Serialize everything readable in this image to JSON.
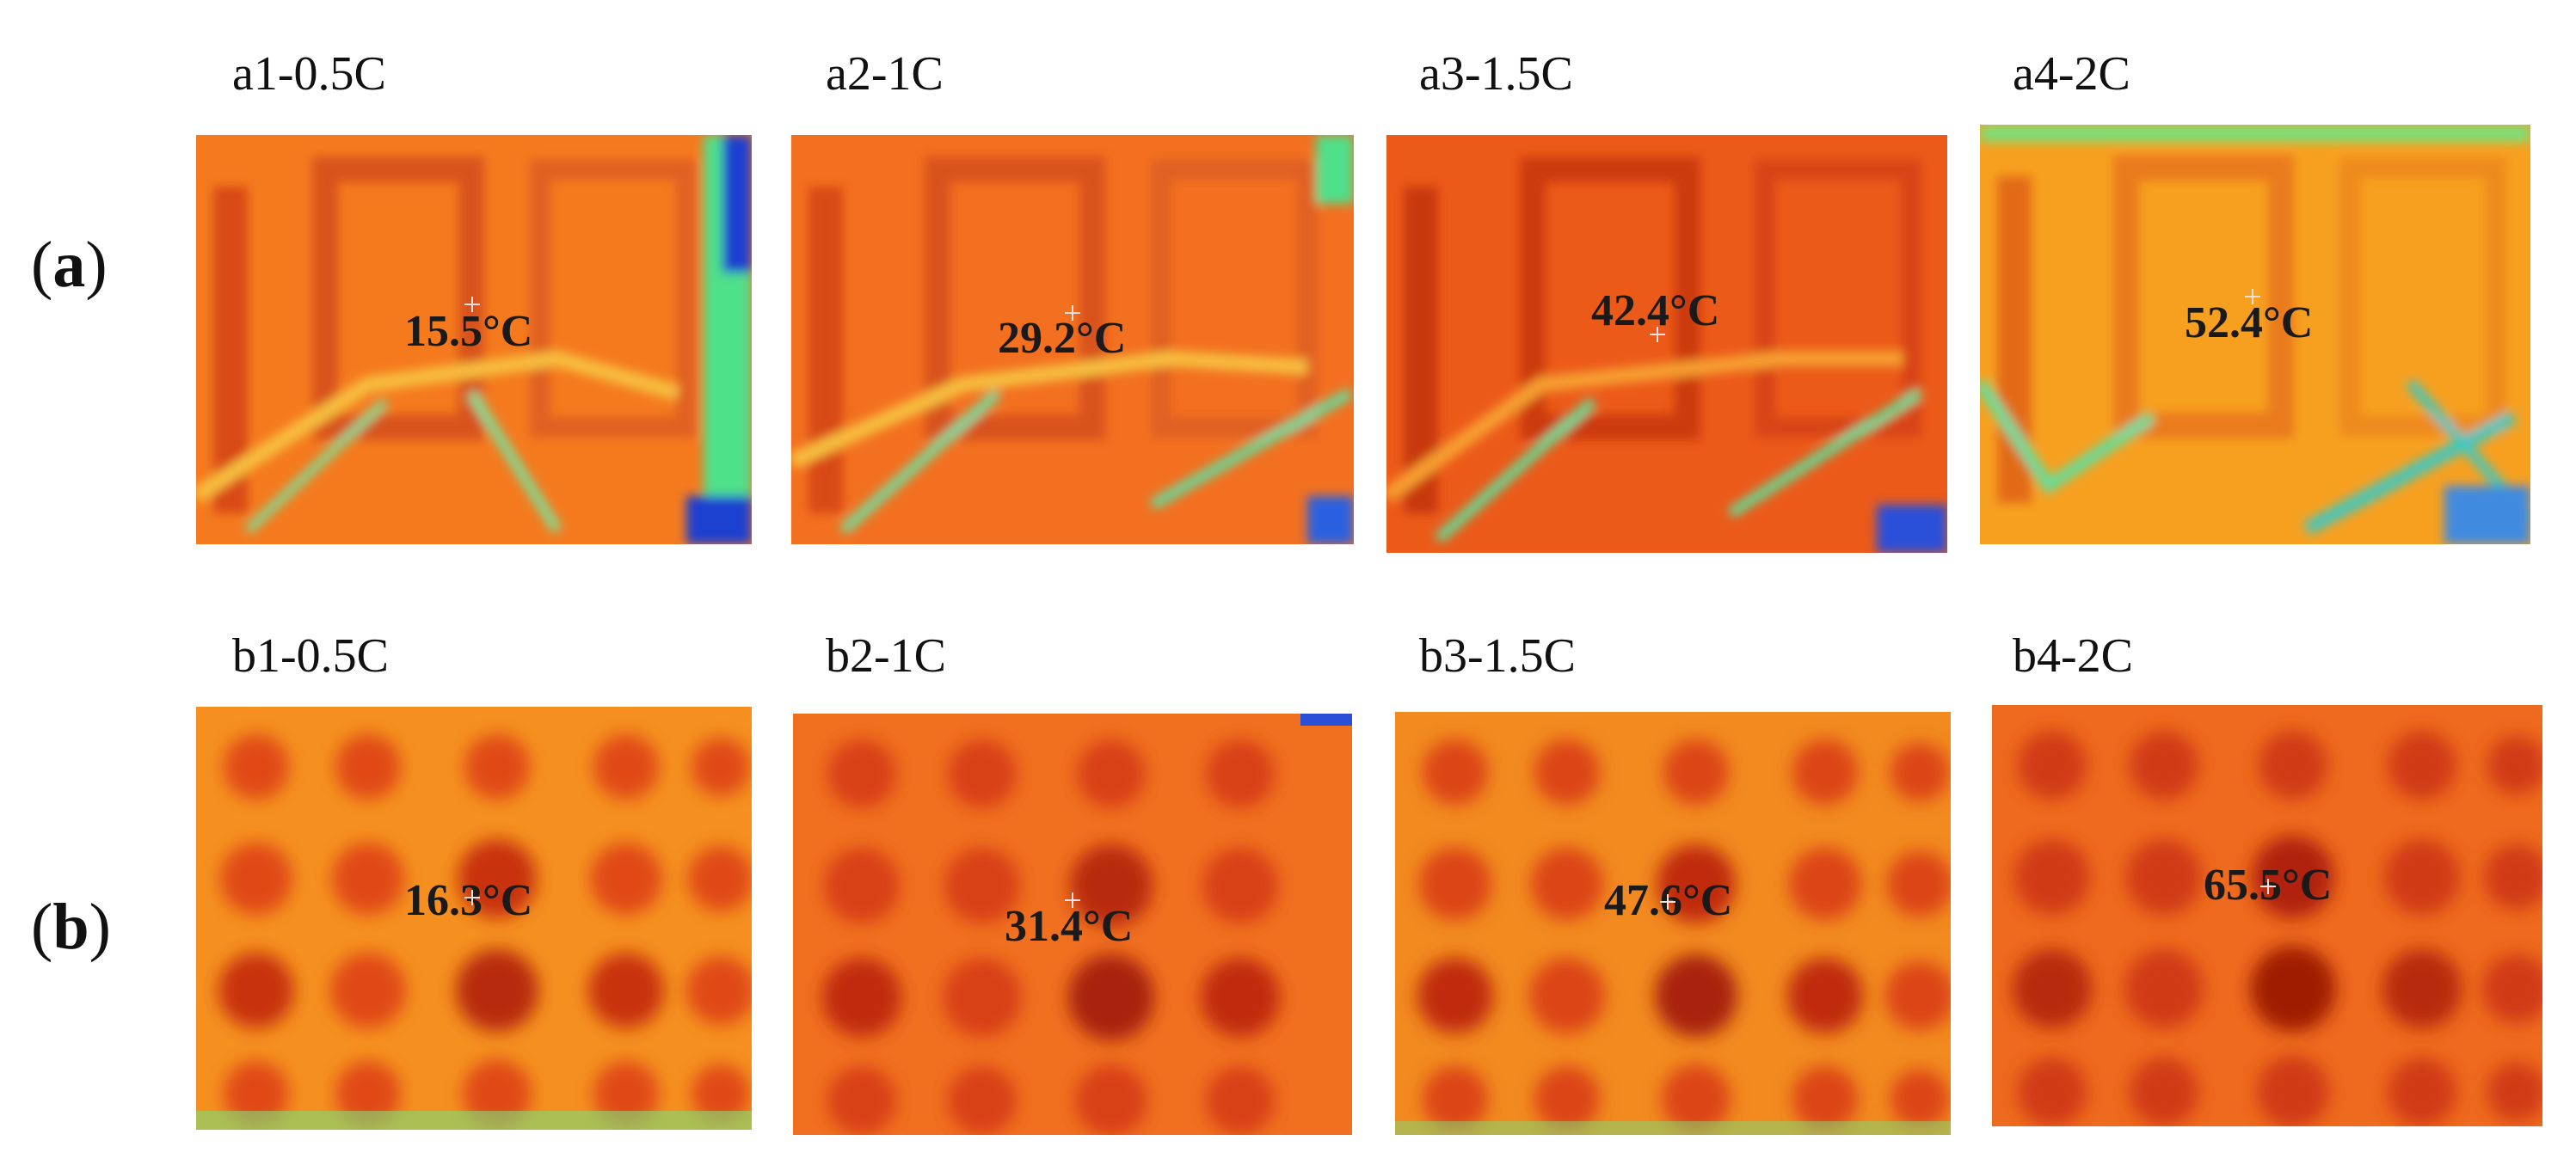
{
  "rows": [
    {
      "paren_open": "(",
      "letter": "a",
      "paren_close": ")",
      "panels": [
        {
          "title": "a1-0.5C",
          "temperature": "15.5°C"
        },
        {
          "title": "a2-1C",
          "temperature": "29.2°C"
        },
        {
          "title": "a3-1.5C",
          "temperature": "42.4°C"
        },
        {
          "title": "a4-2C",
          "temperature": "52.4°C"
        }
      ]
    },
    {
      "paren_open": "(",
      "letter": "b",
      "paren_close": ")",
      "panels": [
        {
          "title": "b1-0.5C",
          "temperature": "16.3°C"
        },
        {
          "title": "b2-1C",
          "temperature": "31.4°C"
        },
        {
          "title": "b3-1.5C",
          "temperature": "47.6°C"
        },
        {
          "title": "b4-2C",
          "temperature": "65.5°C"
        }
      ]
    }
  ],
  "colors": {
    "base_orange": "#f57a1e",
    "hot_red": "#d83c10",
    "warm_yellow": "#f7b020",
    "cool_green": "#4fe08a",
    "cold_blue": "#1a3fd0"
  }
}
